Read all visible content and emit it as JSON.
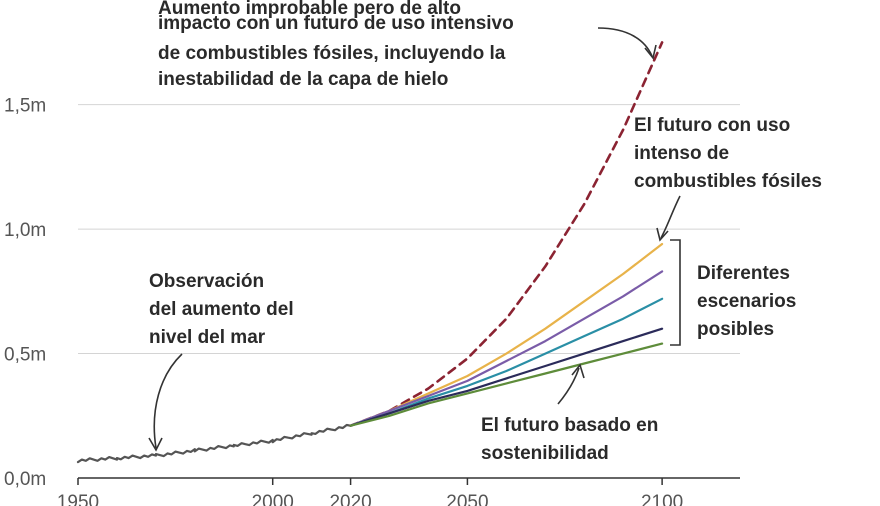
{
  "chart_data": {
    "type": "line",
    "x_domain": [
      1950,
      2120
    ],
    "ylim": [
      0,
      1.8
    ],
    "grid": true,
    "y_ticks": [
      {
        "value": 0.0,
        "label": "0,0m"
      },
      {
        "value": 0.5,
        "label": "0,5m"
      },
      {
        "value": 1.0,
        "label": "1,0m"
      },
      {
        "value": 1.5,
        "label": "1,5m"
      }
    ],
    "x_ticks": [
      {
        "value": 1950,
        "label": "1950"
      },
      {
        "value": 2000,
        "label": "2000"
      },
      {
        "value": 2020,
        "label": "2020"
      },
      {
        "value": 2050,
        "label": "2050"
      },
      {
        "value": 2100,
        "label": "2100"
      }
    ],
    "series": [
      {
        "key": "observed",
        "color": "#555555",
        "dashed": false,
        "x": [
          1950,
          1960,
          1970,
          1980,
          1990,
          2000,
          2010,
          2020
        ],
        "y": [
          0.07,
          0.08,
          0.09,
          0.11,
          0.13,
          0.15,
          0.18,
          0.21
        ]
      },
      {
        "key": "high-impact",
        "color": "#8b2332",
        "dashed": true,
        "x": [
          2020,
          2030,
          2040,
          2050,
          2060,
          2070,
          2080,
          2090,
          2100
        ],
        "y": [
          0.21,
          0.27,
          0.36,
          0.48,
          0.64,
          0.85,
          1.1,
          1.4,
          1.75
        ]
      },
      {
        "key": "scenario-very-high",
        "color": "#e8b34a",
        "dashed": false,
        "x": [
          2020,
          2030,
          2040,
          2050,
          2060,
          2070,
          2080,
          2090,
          2100
        ],
        "y": [
          0.21,
          0.27,
          0.34,
          0.41,
          0.5,
          0.6,
          0.71,
          0.82,
          0.94
        ]
      },
      {
        "key": "scenario-high",
        "color": "#7a5ca8",
        "dashed": false,
        "x": [
          2020,
          2030,
          2040,
          2050,
          2060,
          2070,
          2080,
          2090,
          2100
        ],
        "y": [
          0.21,
          0.27,
          0.33,
          0.39,
          0.47,
          0.55,
          0.64,
          0.73,
          0.83
        ]
      },
      {
        "key": "scenario-intermediate",
        "color": "#2a8fa6",
        "dashed": false,
        "x": [
          2020,
          2030,
          2040,
          2050,
          2060,
          2070,
          2080,
          2090,
          2100
        ],
        "y": [
          0.21,
          0.26,
          0.32,
          0.37,
          0.43,
          0.5,
          0.57,
          0.64,
          0.72
        ]
      },
      {
        "key": "scenario-low",
        "color": "#2b2b5a",
        "dashed": false,
        "x": [
          2020,
          2030,
          2040,
          2050,
          2060,
          2070,
          2080,
          2090,
          2100
        ],
        "y": [
          0.21,
          0.26,
          0.31,
          0.35,
          0.4,
          0.45,
          0.5,
          0.55,
          0.6
        ]
      },
      {
        "key": "scenario-very-low",
        "color": "#5e8c3a",
        "dashed": false,
        "x": [
          2020,
          2030,
          2040,
          2050,
          2060,
          2070,
          2080,
          2090,
          2100
        ],
        "y": [
          0.21,
          0.25,
          0.3,
          0.34,
          0.38,
          0.42,
          0.46,
          0.5,
          0.54
        ]
      }
    ],
    "annotations": {
      "high_impact": [
        "Aumento improbable pero de alto",
        "impacto con un futuro de uso intensivo",
        "de combustibles fósiles, incluyendo la",
        "inestabilidad de la capa de hielo"
      ],
      "high_emissions": [
        "El futuro con uso",
        "intenso de",
        "combustibles fósiles"
      ],
      "scenarios": [
        "Diferentes",
        "escenarios",
        "posibles"
      ],
      "observed": [
        "Observación",
        "del aumento del",
        "nivel del mar"
      ],
      "sustainable": [
        "El futuro basado en",
        "sostenibilidad"
      ]
    }
  }
}
